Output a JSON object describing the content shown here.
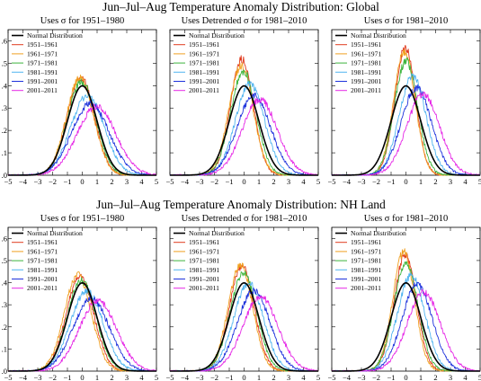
{
  "figure": {
    "sections": [
      {
        "title": "Jun–Jul–Aug Temperature Anomaly Distribution: Global"
      },
      {
        "title": "Jun–Jul–Aug Temperature Anomaly Distribution: NH Land"
      }
    ]
  },
  "legend": {
    "entries": [
      {
        "label": "Normal Distribution",
        "color": "#000000"
      },
      {
        "label": "1951–1961",
        "color": "#e03a1e"
      },
      {
        "label": "1961–1971",
        "color": "#f0a020"
      },
      {
        "label": "1971–1981",
        "color": "#3cb43c"
      },
      {
        "label": "1981–1991",
        "color": "#50b4f0"
      },
      {
        "label": "1991–2001",
        "color": "#1e32dc"
      },
      {
        "label": "2001–2011",
        "color": "#e628e6"
      }
    ]
  },
  "chart_data": [
    {
      "type": "line",
      "section": "Global",
      "title": "Uses σ for 1951–1980",
      "xlim": [
        -5,
        5
      ],
      "ylim": [
        0,
        0.65
      ],
      "xticks": [
        "−5",
        "−4",
        "−3",
        "−2",
        "−1",
        "0",
        "1",
        "2",
        "3",
        "4",
        "5"
      ],
      "yticks": [
        ".0",
        ".1",
        ".2",
        ".3",
        ".4",
        ".5",
        ".6"
      ],
      "series": [
        {
          "name": "Normal Distribution",
          "mean": 0.0,
          "sd": 1.0
        },
        {
          "name": "1951–1961",
          "mean": -0.1,
          "sd": 0.91
        },
        {
          "name": "1961–1971",
          "mean": -0.15,
          "sd": 0.92
        },
        {
          "name": "1971–1981",
          "mean": -0.05,
          "sd": 0.96
        },
        {
          "name": "1981–1991",
          "mean": 0.35,
          "sd": 1.12
        },
        {
          "name": "1991–2001",
          "mean": 0.55,
          "sd": 1.25
        },
        {
          "name": "2001–2011",
          "mean": 0.95,
          "sd": 1.3
        }
      ]
    },
    {
      "type": "line",
      "section": "Global",
      "title": "Uses Detrended σ for 1981–2010",
      "xlim": [
        -5,
        5
      ],
      "ylim": [
        0,
        0.65
      ],
      "xticks": [
        "−5",
        "−4",
        "−3",
        "−2",
        "−1",
        "0",
        "1",
        "2",
        "3",
        "4",
        "5"
      ],
      "yticks": [
        ".0",
        ".1",
        ".2",
        ".3",
        ".4",
        ".5",
        ".6"
      ],
      "series": [
        {
          "name": "Normal Distribution",
          "mean": 0.0,
          "sd": 1.0
        },
        {
          "name": "1951–1961",
          "mean": -0.15,
          "sd": 0.77
        },
        {
          "name": "1961–1971",
          "mean": -0.2,
          "sd": 0.82
        },
        {
          "name": "1971–1981",
          "mean": -0.05,
          "sd": 0.86
        },
        {
          "name": "1981–1991",
          "mean": 0.4,
          "sd": 0.98
        },
        {
          "name": "1991–2001",
          "mean": 0.65,
          "sd": 1.12
        },
        {
          "name": "2001–2011",
          "mean": 1.05,
          "sd": 1.18
        }
      ]
    },
    {
      "type": "line",
      "section": "Global",
      "title": "Uses σ for 1981–2010",
      "xlim": [
        -5,
        5
      ],
      "ylim": [
        0,
        0.65
      ],
      "xticks": [
        "−5",
        "−4",
        "−3",
        "−2",
        "−1",
        "0",
        "1",
        "2",
        "3",
        "4",
        "5"
      ],
      "yticks": [
        ".0",
        ".1",
        ".2",
        ".3",
        ".4",
        ".5",
        ".6"
      ],
      "series": [
        {
          "name": "Normal Distribution",
          "mean": 0.0,
          "sd": 1.0
        },
        {
          "name": "1951–1961",
          "mean": -0.05,
          "sd": 0.7
        },
        {
          "name": "1961–1971",
          "mean": -0.1,
          "sd": 0.72
        },
        {
          "name": "1971–1981",
          "mean": 0.0,
          "sd": 0.78
        },
        {
          "name": "1981–1991",
          "mean": 0.45,
          "sd": 0.9
        },
        {
          "name": "1991–2001",
          "mean": 0.7,
          "sd": 1.02
        },
        {
          "name": "2001–2011",
          "mean": 1.15,
          "sd": 1.1
        }
      ]
    },
    {
      "type": "line",
      "section": "NH Land",
      "title": "Uses σ for 1951–1980",
      "xlim": [
        -5,
        5
      ],
      "ylim": [
        0,
        0.65
      ],
      "xticks": [
        "−5",
        "−4",
        "−3",
        "−2",
        "−1",
        "0",
        "1",
        "2",
        "3",
        "4",
        "5"
      ],
      "yticks": [
        ".0",
        ".1",
        ".2",
        ".3",
        ".4",
        ".5",
        ".6"
      ],
      "series": [
        {
          "name": "Normal Distribution",
          "mean": 0.0,
          "sd": 1.0
        },
        {
          "name": "1951–1961",
          "mean": -0.15,
          "sd": 0.93
        },
        {
          "name": "1961–1971",
          "mean": -0.3,
          "sd": 0.92
        },
        {
          "name": "1971–1981",
          "mean": -0.05,
          "sd": 0.98
        },
        {
          "name": "1981–1991",
          "mean": 0.3,
          "sd": 1.1
        },
        {
          "name": "1991–2001",
          "mean": 0.6,
          "sd": 1.22
        },
        {
          "name": "2001–2011",
          "mean": 1.05,
          "sd": 1.25
        }
      ]
    },
    {
      "type": "line",
      "section": "NH Land",
      "title": "Uses Detrended σ for 1981–2010",
      "xlim": [
        -5,
        5
      ],
      "ylim": [
        0,
        0.65
      ],
      "xticks": [
        "−5",
        "−4",
        "−3",
        "−2",
        "−1",
        "0",
        "1",
        "2",
        "3",
        "4",
        "5"
      ],
      "yticks": [
        ".0",
        ".1",
        ".2",
        ".3",
        ".4",
        ".5",
        ".6"
      ],
      "series": [
        {
          "name": "Normal Distribution",
          "mean": 0.0,
          "sd": 1.0
        },
        {
          "name": "1951–1961",
          "mean": -0.15,
          "sd": 0.84
        },
        {
          "name": "1961–1971",
          "mean": -0.25,
          "sd": 0.83
        },
        {
          "name": "1971–1981",
          "mean": -0.05,
          "sd": 0.9
        },
        {
          "name": "1981–1991",
          "mean": 0.3,
          "sd": 1.0
        },
        {
          "name": "1991–2001",
          "mean": 0.65,
          "sd": 1.1
        },
        {
          "name": "2001–2011",
          "mean": 1.1,
          "sd": 1.18
        }
      ]
    },
    {
      "type": "line",
      "section": "NH Land",
      "title": "Uses σ for 1981–2010",
      "xlim": [
        -5,
        5
      ],
      "ylim": [
        0,
        0.65
      ],
      "xticks": [
        "−5",
        "−4",
        "−3",
        "−2",
        "−1",
        "0",
        "1",
        "2",
        "3",
        "4",
        "5"
      ],
      "yticks": [
        ".0",
        ".1",
        ".2",
        ".3",
        ".4",
        ".5",
        ".6"
      ],
      "series": [
        {
          "name": "Normal Distribution",
          "mean": 0.0,
          "sd": 1.0
        },
        {
          "name": "1951–1961",
          "mean": -0.05,
          "sd": 0.76
        },
        {
          "name": "1961–1971",
          "mean": -0.15,
          "sd": 0.74
        },
        {
          "name": "1971–1981",
          "mean": 0.0,
          "sd": 0.82
        },
        {
          "name": "1981–1991",
          "mean": 0.35,
          "sd": 0.92
        },
        {
          "name": "1991–2001",
          "mean": 0.75,
          "sd": 1.02
        },
        {
          "name": "2001–2011",
          "mean": 1.2,
          "sd": 1.12
        }
      ]
    }
  ]
}
